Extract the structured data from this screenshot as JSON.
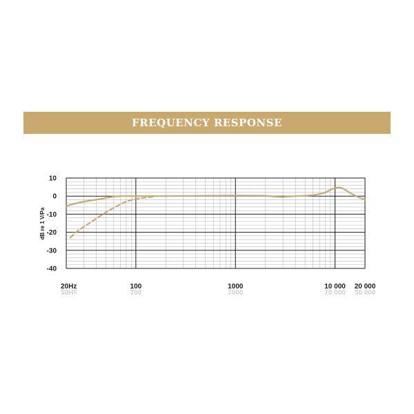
{
  "banner": {
    "title": "FREQUENCY RESPONSE",
    "color": "#c9a96e"
  },
  "chart_data": {
    "type": "line",
    "title": "FREQUENCY RESPONSE",
    "xlabel": "",
    "ylabel": "dB re 1 V/Pa",
    "x_scale": "log",
    "xlim": [
      20,
      20000
    ],
    "ylim": [
      -40,
      10
    ],
    "x_ticks": [
      20,
      100,
      1000,
      10000,
      20000
    ],
    "x_tick_labels": [
      "20Hz",
      "100",
      "1000",
      "10 000",
      "20 000"
    ],
    "y_ticks": [
      10,
      0,
      -10,
      -20,
      -30,
      -40
    ],
    "y_tick_labels": [
      "10",
      "0",
      "-10",
      "-20",
      "-30",
      "-40"
    ],
    "grid": true,
    "series": [
      {
        "style": "solid",
        "color": "#c9a96e",
        "x": [
          20,
          25,
          30,
          40,
          50,
          60,
          70,
          100,
          200,
          500,
          1000,
          2000,
          2500,
          3000,
          4000,
          5000,
          6000,
          7000,
          8000,
          9000,
          10000,
          11000,
          12000,
          13000,
          15000,
          17000,
          20000
        ],
        "y": [
          -5.5,
          -4.0,
          -3.0,
          -2.0,
          -1.0,
          -0.3,
          0,
          0,
          0,
          0.2,
          0.3,
          0.2,
          -0.3,
          -0.5,
          0,
          0.2,
          0.5,
          1.2,
          2.0,
          3.5,
          4.5,
          4.8,
          4.2,
          3.0,
          1.0,
          -0.5,
          -2.0
        ]
      },
      {
        "style": "dashed",
        "color": "#c9a96e",
        "x": [
          22,
          25,
          30,
          40,
          50,
          60,
          70,
          80,
          100,
          150
        ],
        "y": [
          -23,
          -20,
          -17,
          -12.5,
          -9,
          -6.5,
          -4.5,
          -3,
          -1.5,
          -0.3
        ]
      }
    ]
  }
}
